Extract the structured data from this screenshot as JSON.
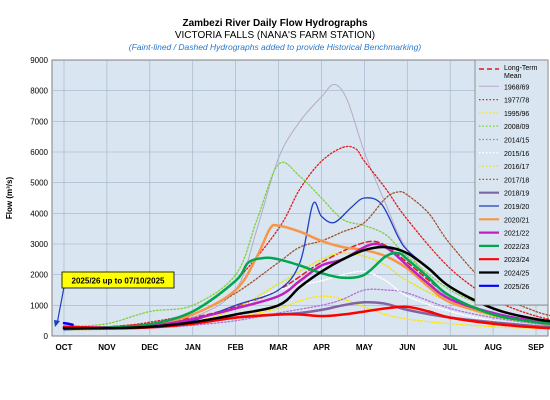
{
  "chart_data": {
    "type": "line",
    "title": "Zambezi River Daily Flow Hydrographs",
    "subtitle": "VICTORIA FALLS (NANA'S FARM STATION)",
    "note": "(Faint-lined / Dashed Hydrographs added to provide Historical Benchmarking)",
    "ylabel": "Flow (m³/s)",
    "xlabel": "",
    "ylim": [
      0,
      9000
    ],
    "yticks": [
      0,
      1000,
      2000,
      3000,
      4000,
      5000,
      6000,
      7000,
      8000,
      9000
    ],
    "ytick_labels": [
      "0",
      "1000",
      "2000",
      "3000",
      "4000",
      "5000",
      "6000",
      "7000",
      "8000",
      "9000"
    ],
    "months": [
      "OCT",
      "NOV",
      "DEC",
      "JAN",
      "FEB",
      "MAR",
      "APR",
      "MAY",
      "JUN",
      "JUL",
      "AUG",
      "SEP"
    ],
    "grid": true,
    "legend_position": "right",
    "annotation": "2025/26 up to 07/10/2025",
    "series": [
      {
        "name": "Long-Term Mean",
        "color": "#e31a1c",
        "style": "dashed",
        "width": 1.5,
        "points": [
          [
            0,
            280
          ],
          [
            1,
            300
          ],
          [
            2,
            400
          ],
          [
            3,
            600
          ],
          [
            4,
            950
          ],
          [
            5,
            1500
          ],
          [
            6,
            2400
          ],
          [
            7,
            3050
          ],
          [
            7.5,
            2950
          ],
          [
            8,
            2400
          ],
          [
            9,
            1300
          ],
          [
            10,
            750
          ],
          [
            11,
            450
          ],
          [
            11.8,
            350
          ]
        ]
      },
      {
        "name": "1968/69",
        "color": "#b8a9c9",
        "style": "solid",
        "width": 1,
        "points": [
          [
            0,
            250
          ],
          [
            1,
            280
          ],
          [
            2,
            350
          ],
          [
            3,
            600
          ],
          [
            4,
            1500
          ],
          [
            4.5,
            3500
          ],
          [
            5,
            5800
          ],
          [
            5.5,
            7000
          ],
          [
            6,
            7800
          ],
          [
            6.3,
            8200
          ],
          [
            6.6,
            7700
          ],
          [
            7,
            6000
          ],
          [
            7.5,
            4300
          ],
          [
            8,
            2800
          ],
          [
            9,
            1200
          ],
          [
            10,
            650
          ],
          [
            11,
            400
          ],
          [
            11.8,
            300
          ]
        ]
      },
      {
        "name": "1977/78",
        "color": "#e41a1c",
        "style": "dotted",
        "width": 1.3,
        "points": [
          [
            0,
            250
          ],
          [
            1,
            300
          ],
          [
            2,
            450
          ],
          [
            3,
            800
          ],
          [
            4,
            1800
          ],
          [
            5,
            3500
          ],
          [
            5.5,
            4800
          ],
          [
            6,
            5700
          ],
          [
            6.5,
            6150
          ],
          [
            6.8,
            6100
          ],
          [
            7,
            5700
          ],
          [
            7.5,
            4800
          ],
          [
            8,
            3800
          ],
          [
            9,
            2200
          ],
          [
            10,
            1200
          ],
          [
            11,
            650
          ],
          [
            11.8,
            450
          ]
        ]
      },
      {
        "name": "1995/96",
        "color": "#ffe600",
        "style": "dotted",
        "width": 1.3,
        "points": [
          [
            0,
            200
          ],
          [
            1,
            220
          ],
          [
            2,
            280
          ],
          [
            3,
            400
          ],
          [
            4,
            600
          ],
          [
            5,
            900
          ],
          [
            5.5,
            1150
          ],
          [
            6,
            1300
          ],
          [
            6.5,
            1200
          ],
          [
            7,
            950
          ],
          [
            7.5,
            700
          ],
          [
            8,
            550
          ],
          [
            9,
            400
          ],
          [
            10,
            300
          ],
          [
            11,
            250
          ],
          [
            11.8,
            220
          ]
        ]
      },
      {
        "name": "2008/09",
        "color": "#7fd13b",
        "style": "dotted",
        "width": 1.3,
        "points": [
          [
            0,
            300
          ],
          [
            1,
            400
          ],
          [
            2,
            800
          ],
          [
            3,
            1000
          ],
          [
            4,
            2000
          ],
          [
            4.5,
            3800
          ],
          [
            5,
            5600
          ],
          [
            5.5,
            5200
          ],
          [
            6,
            4500
          ],
          [
            6.5,
            3800
          ],
          [
            7,
            3600
          ],
          [
            7.5,
            3300
          ],
          [
            8,
            2600
          ],
          [
            9,
            1500
          ],
          [
            10,
            900
          ],
          [
            11,
            550
          ],
          [
            11.8,
            400
          ]
        ]
      },
      {
        "name": "2014/15",
        "color": "#b36ed9",
        "style": "dotted",
        "width": 1.3,
        "points": [
          [
            0,
            200
          ],
          [
            1,
            220
          ],
          [
            2,
            260
          ],
          [
            3,
            350
          ],
          [
            4,
            500
          ],
          [
            5,
            750
          ],
          [
            6,
            1000
          ],
          [
            6.5,
            1200
          ],
          [
            7,
            1500
          ],
          [
            7.5,
            1500
          ],
          [
            8,
            1400
          ],
          [
            9,
            900
          ],
          [
            10,
            600
          ],
          [
            11,
            400
          ],
          [
            11.8,
            300
          ]
        ]
      },
      {
        "name": "2015/16",
        "color": "#ffffff",
        "style": "dotted",
        "width": 1.5,
        "points": [
          [
            0,
            220
          ],
          [
            1,
            250
          ],
          [
            2,
            320
          ],
          [
            3,
            500
          ],
          [
            4,
            900
          ],
          [
            5,
            1500
          ],
          [
            6,
            1800
          ],
          [
            6.5,
            2000
          ],
          [
            7,
            2100
          ],
          [
            7.5,
            1800
          ],
          [
            8,
            1300
          ],
          [
            9,
            800
          ],
          [
            10,
            500
          ],
          [
            11,
            320
          ],
          [
            11.8,
            260
          ]
        ]
      },
      {
        "name": "2016/17",
        "color": "#e6e600",
        "style": "dotted",
        "width": 1.3,
        "points": [
          [
            0,
            200
          ],
          [
            1,
            230
          ],
          [
            2,
            300
          ],
          [
            3,
            450
          ],
          [
            4,
            900
          ],
          [
            5,
            1700
          ],
          [
            6,
            2500
          ],
          [
            6.5,
            2700
          ],
          [
            7,
            2600
          ],
          [
            7.5,
            2300
          ],
          [
            8,
            1800
          ],
          [
            9,
            1100
          ],
          [
            10,
            650
          ],
          [
            11,
            420
          ],
          [
            11.8,
            330
          ]
        ]
      },
      {
        "name": "2017/18",
        "color": "#a0522d",
        "style": "dotted",
        "width": 1.3,
        "points": [
          [
            0,
            250
          ],
          [
            1,
            300
          ],
          [
            2,
            400
          ],
          [
            3,
            700
          ],
          [
            4,
            1400
          ],
          [
            5,
            2400
          ],
          [
            5.5,
            2900
          ],
          [
            6,
            3100
          ],
          [
            6.5,
            3400
          ],
          [
            7,
            3700
          ],
          [
            7.5,
            4500
          ],
          [
            7.8,
            4700
          ],
          [
            8,
            4600
          ],
          [
            8.5,
            4000
          ],
          [
            9,
            3000
          ],
          [
            10,
            1500
          ],
          [
            11,
            800
          ],
          [
            11.8,
            550
          ]
        ]
      },
      {
        "name": "2018/19",
        "color": "#8064a2",
        "style": "solid",
        "width": 2.5,
        "points": [
          [
            0,
            250
          ],
          [
            1,
            260
          ],
          [
            2,
            300
          ],
          [
            3,
            420
          ],
          [
            4,
            600
          ],
          [
            5,
            700
          ],
          [
            5.5,
            750
          ],
          [
            6,
            850
          ],
          [
            6.5,
            1000
          ],
          [
            7,
            1100
          ],
          [
            7.5,
            1050
          ],
          [
            8,
            850
          ],
          [
            9,
            600
          ],
          [
            10,
            450
          ],
          [
            11,
            320
          ],
          [
            11.8,
            260
          ]
        ]
      },
      {
        "name": "2019/20",
        "color": "#1f3fbf",
        "style": "solid",
        "width": 1.3,
        "points": [
          [
            0,
            200
          ],
          [
            1,
            250
          ],
          [
            2,
            300
          ],
          [
            3,
            500
          ],
          [
            4,
            1000
          ],
          [
            5,
            1500
          ],
          [
            5.5,
            2400
          ],
          [
            5.8,
            4300
          ],
          [
            6,
            3900
          ],
          [
            6.3,
            3700
          ],
          [
            6.7,
            4200
          ],
          [
            7,
            4500
          ],
          [
            7.4,
            4300
          ],
          [
            7.8,
            3200
          ],
          [
            8,
            2800
          ],
          [
            8.5,
            2200
          ],
          [
            9,
            1600
          ],
          [
            10,
            900
          ],
          [
            11,
            550
          ],
          [
            11.8,
            400
          ]
        ]
      },
      {
        "name": "2020/21",
        "color": "#f79646",
        "style": "solid",
        "width": 2.5,
        "points": [
          [
            0,
            250
          ],
          [
            1,
            260
          ],
          [
            2,
            350
          ],
          [
            3,
            700
          ],
          [
            4,
            1500
          ],
          [
            4.5,
            2600
          ],
          [
            4.8,
            3500
          ],
          [
            5,
            3600
          ],
          [
            5.5,
            3400
          ],
          [
            6,
            3100
          ],
          [
            6.5,
            2900
          ],
          [
            7,
            2800
          ],
          [
            7.5,
            2600
          ],
          [
            8,
            2200
          ],
          [
            8.5,
            1600
          ],
          [
            9,
            1100
          ],
          [
            10,
            700
          ],
          [
            11,
            450
          ],
          [
            11.8,
            350
          ]
        ]
      },
      {
        "name": "2021/22",
        "color": "#c020c0",
        "style": "solid",
        "width": 2.5,
        "points": [
          [
            0,
            300
          ],
          [
            1,
            280
          ],
          [
            2,
            330
          ],
          [
            3,
            550
          ],
          [
            4,
            900
          ],
          [
            5,
            1300
          ],
          [
            5.5,
            1800
          ],
          [
            6,
            2300
          ],
          [
            6.5,
            2500
          ],
          [
            7,
            2900
          ],
          [
            7.3,
            3000
          ],
          [
            7.6,
            2800
          ],
          [
            8,
            2300
          ],
          [
            8.5,
            1700
          ],
          [
            9,
            1200
          ],
          [
            10,
            750
          ],
          [
            11,
            480
          ],
          [
            11.8,
            380
          ]
        ]
      },
      {
        "name": "2022/23",
        "color": "#00a650",
        "style": "solid",
        "width": 2.5,
        "points": [
          [
            0,
            250
          ],
          [
            1,
            270
          ],
          [
            2,
            380
          ],
          [
            3,
            800
          ],
          [
            4,
            1800
          ],
          [
            4.3,
            2400
          ],
          [
            4.7,
            2550
          ],
          [
            5,
            2500
          ],
          [
            5.5,
            2300
          ],
          [
            6,
            2050
          ],
          [
            6.5,
            1900
          ],
          [
            7,
            2000
          ],
          [
            7.5,
            2600
          ],
          [
            7.8,
            2700
          ],
          [
            8,
            2500
          ],
          [
            8.5,
            1900
          ],
          [
            9,
            1300
          ],
          [
            10,
            700
          ],
          [
            11,
            450
          ],
          [
            11.8,
            350
          ]
        ]
      },
      {
        "name": "2023/24",
        "color": "#ff0000",
        "style": "solid",
        "width": 2.5,
        "points": [
          [
            0,
            300
          ],
          [
            0.5,
            280
          ],
          [
            1,
            250
          ],
          [
            2,
            280
          ],
          [
            3,
            400
          ],
          [
            4,
            600
          ],
          [
            5,
            700
          ],
          [
            5.5,
            700
          ],
          [
            6,
            650
          ],
          [
            6.5,
            700
          ],
          [
            7,
            800
          ],
          [
            7.5,
            900
          ],
          [
            8,
            950
          ],
          [
            8.5,
            800
          ],
          [
            9,
            600
          ],
          [
            10,
            400
          ],
          [
            11,
            280
          ],
          [
            11.8,
            230
          ]
        ]
      },
      {
        "name": "2024/25",
        "color": "#000000",
        "style": "solid",
        "width": 2.5,
        "points": [
          [
            0,
            250
          ],
          [
            1,
            250
          ],
          [
            2,
            300
          ],
          [
            3,
            450
          ],
          [
            4,
            700
          ],
          [
            5,
            1000
          ],
          [
            5.5,
            1600
          ],
          [
            6,
            2100
          ],
          [
            6.5,
            2500
          ],
          [
            7,
            2800
          ],
          [
            7.5,
            2900
          ],
          [
            8,
            2700
          ],
          [
            8.5,
            2200
          ],
          [
            9,
            1600
          ],
          [
            10,
            900
          ],
          [
            11,
            550
          ],
          [
            11.8,
            420
          ]
        ]
      },
      {
        "name": "2025/26",
        "color": "#0000ff",
        "style": "solid",
        "width": 2.5,
        "points": [
          [
            0,
            420
          ],
          [
            0.1,
            400
          ],
          [
            0.2,
            370
          ]
        ]
      }
    ]
  }
}
